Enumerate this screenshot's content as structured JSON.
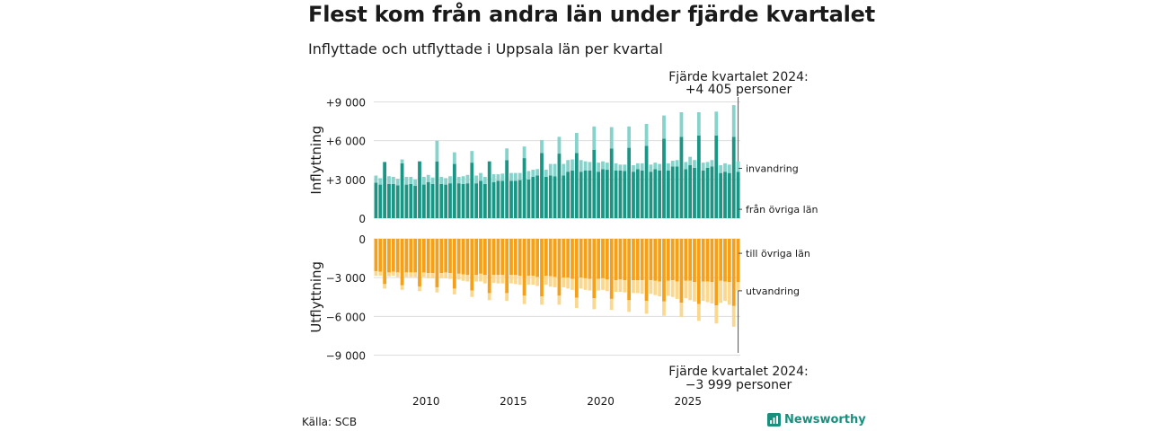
{
  "header": {
    "title": "Flest kom från andra län under fjärde kvartalet",
    "subtitle": "Inflyttade och utflyttade i Uppsala län per kvartal"
  },
  "footer": {
    "source": "Källa: SCB",
    "brand": "Newsworthy"
  },
  "colors": {
    "inflow_other_counties": "#1b9584",
    "inflow_immigration": "#86d3cc",
    "outflow_other_counties": "#f5a01a",
    "outflow_emigration": "#fbd88f",
    "grid": "#dddddd",
    "axis_text": "#1a1a1a",
    "brand": "#1b8f7e"
  },
  "chart_data": {
    "type": "bar",
    "stacked": true,
    "x_ticks": [
      "2010",
      "2015",
      "2020",
      "2025"
    ],
    "x_tick_values": [
      2010,
      2015,
      2020,
      2025
    ],
    "panels": [
      {
        "name": "inflow",
        "ylabel": "Inflyttning",
        "ylim": [
          0,
          9000
        ],
        "ticks": [
          0,
          3000,
          6000,
          9000
        ],
        "tick_labels": [
          "0",
          "+3 000",
          "+6 000",
          "+9 000"
        ],
        "annotation": [
          "Fjärde kvartalet 2024:",
          "+4 405 personer"
        ],
        "series": [
          {
            "name": "från övriga län",
            "color": "#1b9584",
            "values": [
              2750,
              2600,
              4350,
              2650,
              2650,
              2550,
              4250,
              2600,
              2650,
              2500,
              4400,
              2600,
              2800,
              2650,
              4400,
              2650,
              2600,
              2700,
              4200,
              2700,
              2650,
              2700,
              4300,
              2700,
              2900,
              2650,
              4400,
              2800,
              2900,
              2900,
              4500,
              2900,
              2900,
              2950,
              4650,
              3000,
              3200,
              3300,
              5050,
              3200,
              3300,
              3250,
              5000,
              3300,
              3600,
              3700,
              5050,
              3600,
              3700,
              3700,
              5300,
              3600,
              3800,
              3750,
              5400,
              3700,
              3700,
              3650,
              5450,
              3600,
              3800,
              3700,
              5600,
              3600,
              3800,
              3700,
              6150,
              3700,
              4000,
              4000,
              6300,
              3800,
              4100,
              3900,
              6400,
              3700,
              3900,
              4000,
              6400,
              3500,
              3600,
              3500,
              6300,
              3600
            ]
          },
          {
            "name": "invandring",
            "color": "#86d3cc",
            "values": [
              550,
              500,
              0,
              600,
              550,
              500,
              300,
              600,
              550,
              500,
              0,
              600,
              550,
              500,
              1600,
              550,
              500,
              550,
              900,
              500,
              600,
              650,
              900,
              600,
              600,
              550,
              0,
              600,
              500,
              550,
              900,
              600,
              600,
              550,
              900,
              650,
              550,
              500,
              1000,
              550,
              900,
              950,
              1300,
              900,
              900,
              850,
              1550,
              900,
              700,
              650,
              1800,
              700,
              600,
              550,
              1650,
              550,
              450,
              500,
              1650,
              500,
              450,
              550,
              1700,
              550,
              500,
              500,
              1800,
              550,
              450,
              500,
              1900,
              550,
              650,
              600,
              1800,
              600,
              450,
              500,
              1850,
              600,
              650,
              650,
              2450,
              800
            ]
          }
        ]
      },
      {
        "name": "outflow",
        "ylabel": "Utflyttning",
        "ylim": [
          -9000,
          0
        ],
        "ticks": [
          0,
          -3000,
          -6000,
          -9000
        ],
        "tick_labels": [
          "0",
          "−3 000",
          "−6 000",
          "−9 000"
        ],
        "annotation": [
          "Fjärde kvartalet 2024:",
          "−3 999 personer"
        ],
        "series": [
          {
            "name": "till övriga län",
            "color": "#f5a01a",
            "values": [
              -2500,
              -2550,
              -3500,
              -2600,
              -2550,
              -2600,
              -3600,
              -2600,
              -2600,
              -2600,
              -3700,
              -2600,
              -2650,
              -2650,
              -3750,
              -2650,
              -2600,
              -2650,
              -3850,
              -2700,
              -2750,
              -2800,
              -4000,
              -2800,
              -2700,
              -2800,
              -4200,
              -2800,
              -2800,
              -2800,
              -4200,
              -2800,
              -2800,
              -2850,
              -4400,
              -2850,
              -2850,
              -2950,
              -4450,
              -2850,
              -2900,
              -2950,
              -4400,
              -3000,
              -3000,
              -3100,
              -4550,
              -3000,
              -3050,
              -3100,
              -4600,
              -3100,
              -3050,
              -3150,
              -4650,
              -3200,
              -3150,
              -3200,
              -4750,
              -3200,
              -3200,
              -3200,
              -4800,
              -3200,
              -3250,
              -3300,
              -4850,
              -3250,
              -3200,
              -3300,
              -4950,
              -3250,
              -3250,
              -3350,
              -5050,
              -3300,
              -3300,
              -3350,
              -5150,
              -3250,
              -3300,
              -3350,
              -5200,
              -3350
            ]
          },
          {
            "name": "utvandring",
            "color": "#fbd88f",
            "values": [
              -350,
              -300,
              -350,
              -300,
              -300,
              -350,
              -350,
              -350,
              -350,
              -350,
              -350,
              -350,
              -400,
              -400,
              -400,
              -400,
              -450,
              -450,
              -450,
              -450,
              -500,
              -500,
              -500,
              -500,
              -600,
              -650,
              -550,
              -600,
              -650,
              -650,
              -600,
              -650,
              -700,
              -700,
              -650,
              -700,
              -700,
              -700,
              -650,
              -700,
              -800,
              -800,
              -700,
              -750,
              -850,
              -850,
              -800,
              -850,
              -900,
              -900,
              -850,
              -900,
              -900,
              -900,
              -850,
              -900,
              -950,
              -950,
              -900,
              -1000,
              -1000,
              -1050,
              -1000,
              -1050,
              -1100,
              -1150,
              -1100,
              -1150,
              -1300,
              -1350,
              -1100,
              -1350,
              -1500,
              -1500,
              -1300,
              -1500,
              -1600,
              -1650,
              -1400,
              -1700,
              -1500,
              -1750,
              -1600,
              -650
            ]
          }
        ]
      }
    ]
  }
}
